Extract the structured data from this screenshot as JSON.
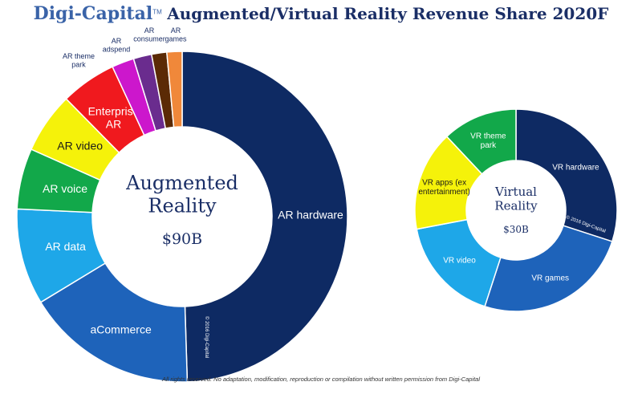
{
  "header": {
    "logo": "Digi-Capital",
    "trademark": "TM",
    "title": "Augmented/Virtual Reality Revenue Share 2020F"
  },
  "footer": "All rights reserved. No adaptation, modification, reproduction or compilation without written permission from Digi-Capital",
  "chart_data": [
    {
      "type": "donut",
      "center_title": "Augmented Reality",
      "total": "$90B",
      "watermark": "© 2016 Digi-Capital",
      "slices": [
        {
          "label": "AR hardware",
          "value": 50,
          "color": "#0e2a63",
          "text_color": "#ffffff"
        },
        {
          "label": "aCommerce",
          "value": 17,
          "color": "#1e63ba",
          "text_color": "#ffffff"
        },
        {
          "label": "AR data",
          "value": 9.5,
          "color": "#1ea7e8",
          "text_color": "#ffffff"
        },
        {
          "label": "AR voice",
          "value": 6,
          "color": "#12a84a",
          "text_color": "#ffffff"
        },
        {
          "label": "AR video",
          "value": 6,
          "color": "#f5f20a",
          "text_color": "#1a1a1a"
        },
        {
          "label": "Enterprise AR",
          "value": 5.5,
          "color": "#f0191e",
          "text_color": "#ffffff"
        },
        {
          "label": "AR theme park",
          "value": 2.2,
          "color": "#cc17cc",
          "text_color": "#1a2e66"
        },
        {
          "label": "AR adspend",
          "value": 1.8,
          "color": "#6a2c8e",
          "text_color": "#1a2e66"
        },
        {
          "label": "AR consumer",
          "value": 1.5,
          "color": "#5b2a05",
          "text_color": "#1a2e66"
        },
        {
          "label": "AR games",
          "value": 1.5,
          "color": "#f0883a",
          "text_color": "#1a2e66"
        }
      ]
    },
    {
      "type": "donut",
      "center_title": "Virtual Reality",
      "total": "$30B",
      "watermark": "© 2016 Digi-Capital",
      "slices": [
        {
          "label": "VR hardware",
          "value": 30,
          "color": "#0e2a63",
          "text_color": "#ffffff"
        },
        {
          "label": "VR games",
          "value": 25,
          "color": "#1e63ba",
          "text_color": "#ffffff"
        },
        {
          "label": "VR video",
          "value": 17,
          "color": "#1ea7e8",
          "text_color": "#ffffff"
        },
        {
          "label": "VR apps (ex entertainment)",
          "value": 16,
          "color": "#f5f20a",
          "text_color": "#1a1a1a"
        },
        {
          "label": "VR theme park",
          "value": 12,
          "color": "#12a84a",
          "text_color": "#ffffff"
        }
      ]
    }
  ]
}
